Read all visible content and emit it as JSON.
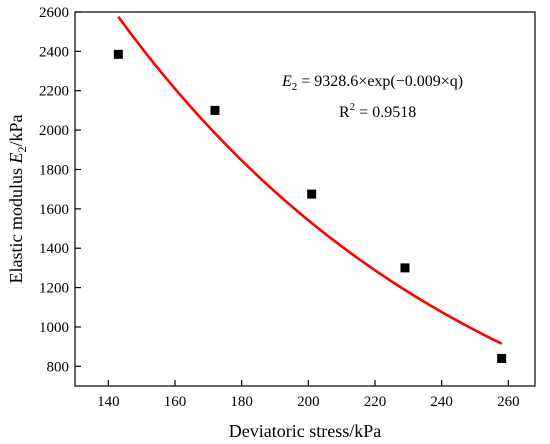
{
  "chart_data": {
    "type": "scatter",
    "xlabel": "Deviatoric stress/kPa",
    "ylabel": {
      "prefix": "Elastic modulus ",
      "var": "E",
      "sub": "2",
      "suffix": "/kPa"
    },
    "xlim": [
      130,
      268
    ],
    "ylim": [
      700,
      2600
    ],
    "xticks": [
      140,
      160,
      180,
      200,
      220,
      240,
      260
    ],
    "yticks": [
      800,
      1000,
      1200,
      1400,
      1600,
      1800,
      2000,
      2200,
      2400,
      2600
    ],
    "grid": false,
    "series": [
      {
        "kind": "points",
        "marker": "square",
        "color": "#000000",
        "x": [
          143,
          172,
          201,
          229,
          258
        ],
        "y": [
          2385,
          2100,
          1675,
          1300,
          840
        ]
      },
      {
        "kind": "fit",
        "color": "#ff0000",
        "model": {
          "a": 9328.6,
          "b": -0.009
        },
        "x_range": [
          143,
          258
        ]
      }
    ],
    "annotations": {
      "equation": {
        "lhs_var": "E",
        "lhs_sub": "2",
        "rhs": " = 9328.6×exp(−0.009×q)"
      },
      "r2": {
        "base": "R",
        "sup": "2",
        "rhs": " = 0.9518"
      }
    }
  }
}
